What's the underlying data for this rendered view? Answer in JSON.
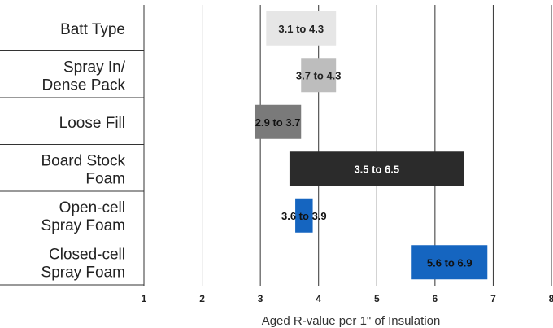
{
  "chart_data": {
    "type": "bar",
    "orientation": "horizontal-range",
    "title": "",
    "xlabel": "Aged R-value per 1\" of Insulation",
    "ylabel": "",
    "xlim": [
      1,
      8
    ],
    "x_ticks": [
      "1",
      "2",
      "3",
      "4",
      "5",
      "6",
      "7",
      "8"
    ],
    "grid": "vertical",
    "categories": [
      [
        "Batt Type"
      ],
      [
        "Spray In/",
        "Dense Pack"
      ],
      [
        "Loose Fill"
      ],
      [
        "Board Stock",
        "Foam"
      ],
      [
        "Open-cell",
        "Spray Foam"
      ],
      [
        "Closed-cell",
        "Spray Foam"
      ]
    ],
    "ranges": [
      {
        "low": 3.1,
        "high": 4.3,
        "label": "3.1 to 4.3",
        "color": "#e6e6e6",
        "text_color": "#222222"
      },
      {
        "low": 3.7,
        "high": 4.3,
        "label": "3.7 to 4.3",
        "color": "#bdbdbd",
        "text_color": "#222222"
      },
      {
        "low": 2.9,
        "high": 3.7,
        "label": "2.9 to 3.7",
        "color": "#7a7a7a",
        "text_color": "#111111"
      },
      {
        "low": 3.5,
        "high": 6.5,
        "label": "3.5 to 6.5",
        "color": "#2b2b2b",
        "text_color": "#ffffff"
      },
      {
        "low": 3.6,
        "high": 3.9,
        "label": "3.6 to 3.9",
        "color": "#1565c0",
        "text_color": "#111111"
      },
      {
        "low": 5.6,
        "high": 6.9,
        "label": "5.6 to 6.9",
        "color": "#1565c0",
        "text_color": "#111111"
      }
    ]
  }
}
